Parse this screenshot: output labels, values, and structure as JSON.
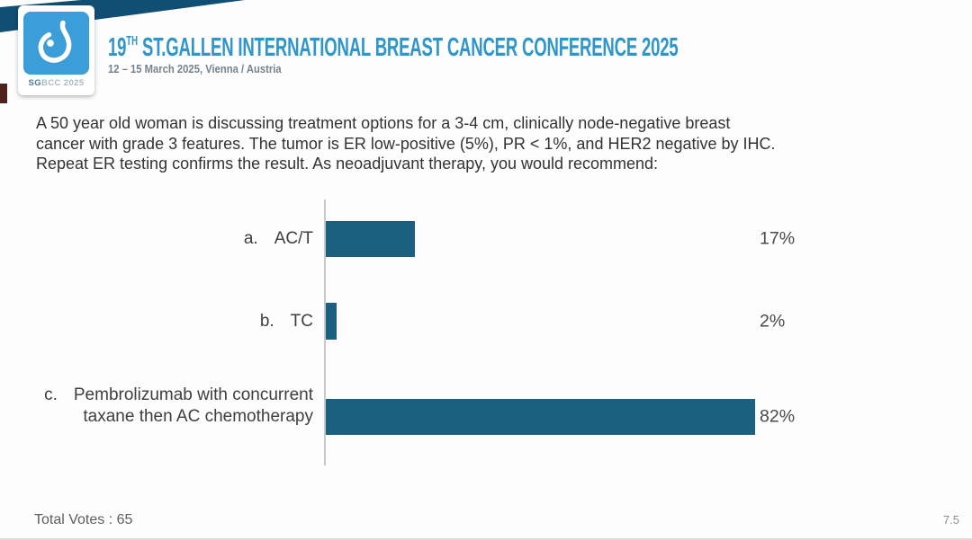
{
  "header": {
    "logo": {
      "badge_primary": "SG",
      "badge_secondary": "BCC 2025",
      "square_color": "#3b9ed8",
      "glyph": "drop-logo-icon"
    },
    "title_number": "19",
    "title_superscript": "TH",
    "title_rest": " ST.GALLEN INTERNATIONAL BREAST CANCER CONFERENCE 2025",
    "subtitle": "12 – 15 March 2025, Vienna / Austria",
    "title_color": "#2e96cb",
    "banner_color": "#114e74"
  },
  "question_lines": [
    "A 50 year old woman is discussing treatment options for a 3-4 cm, clinically node-negative breast",
    "cancer with grade 3 features. The tumor is ER low-positive (5%), PR < 1%, and HER2 negative by IHC.",
    "Repeat ER testing confirms the result. As neoadjuvant therapy, you would recommend:"
  ],
  "chart_data": {
    "type": "bar",
    "orientation": "horizontal",
    "title": "",
    "option_letters": [
      "a.",
      "b.",
      "c."
    ],
    "categories": [
      "AC/T",
      "TC",
      "Pembrolizumab with concurrent taxane then AC chemotherapy"
    ],
    "category_lines": [
      [
        "AC/T"
      ],
      [
        "TC"
      ],
      [
        "Pembrolizumab with concurrent",
        "taxane then AC chemotherapy"
      ]
    ],
    "values": [
      17,
      2,
      82
    ],
    "value_labels": [
      "17%",
      "2%",
      "82%"
    ],
    "xlim": [
      0,
      100
    ],
    "grid": false,
    "legend": false,
    "bar_color": "#1c6080",
    "axis_color": "#c7c7c7",
    "total_votes": 65
  },
  "footer": {
    "total_votes_label": "Total Votes : 65",
    "page_number": "7.5"
  }
}
